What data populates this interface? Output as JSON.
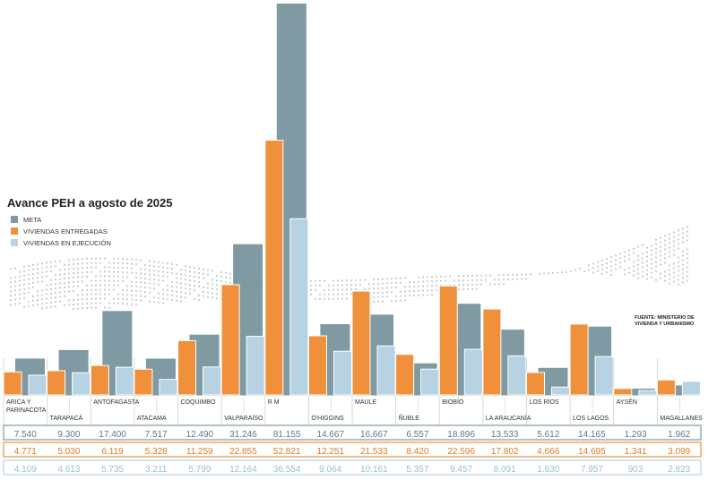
{
  "title": "Avance PEH a agosto de 2025",
  "source": "FUENTE: MINISTERIO DE VIVIENDA Y URBANISMO",
  "colors": {
    "meta": "#7f9aa3",
    "entregadas": "#f0903a",
    "ejecucion": "#b7d3e3"
  },
  "chart_data": {
    "type": "bar",
    "title": "Avance PEH a agosto de 2025",
    "categories": [
      "ARICA Y PARINACOTA",
      "TARAPACÁ",
      "ANTOFAGASTA",
      "ATACAMA",
      "COQUIMBO",
      "VALPARAÍSO",
      "R M",
      "O'HIGGINS",
      "MAULE",
      "ÑUBLE",
      "BIOBÍO",
      "LA ARAUCANÍA",
      "LOS RÍOS",
      "LOS LAGOS",
      "AYSÉN",
      "MAGALLANES"
    ],
    "series": [
      {
        "name": "META",
        "values": [
          7540,
          9300,
          17400,
          7517,
          12490,
          31246,
          81155,
          14667,
          16667,
          6557,
          18896,
          13533,
          5612,
          14165,
          1293,
          1962
        ],
        "labels": [
          "7.540",
          "9.300",
          "17.400",
          "7.517",
          "12.490",
          "31.246",
          "81.155",
          "14.667",
          "16.667",
          "6.557",
          "18.896",
          "13.533",
          "5.612",
          "14.165",
          "1.293",
          "1.962"
        ]
      },
      {
        "name": "VIVIENDAS ENTREGADAS",
        "values": [
          4771,
          5030,
          6119,
          5328,
          11259,
          22855,
          52821,
          12251,
          21533,
          8420,
          22596,
          17802,
          4666,
          14695,
          1341,
          3099
        ],
        "labels": [
          "4.771",
          "5.030",
          "6.119",
          "5.328",
          "11.259",
          "22.855",
          "52.821",
          "12.251",
          "21.533",
          "8.420",
          "22.596",
          "17.802",
          "4.666",
          "14.695",
          "1.341",
          "3.099"
        ]
      },
      {
        "name": "VIVIENDAS EN EJECUCIÓN",
        "values": [
          4109,
          4613,
          5735,
          3211,
          5799,
          12164,
          36554,
          9064,
          10161,
          5357,
          9457,
          8091,
          1630,
          7957,
          903,
          2823
        ],
        "labels": [
          "4.109",
          "4.613",
          "5.735",
          "3.211",
          "5.799",
          "12.164",
          "36.554",
          "9.064",
          "10.161",
          "5.357",
          "9.457",
          "8.091",
          "1.630",
          "7.957",
          "903",
          "2.823"
        ]
      }
    ],
    "xlabel": "",
    "ylabel": "",
    "ylim": [
      0,
      81155
    ],
    "grid": false,
    "legend": "top-left"
  }
}
